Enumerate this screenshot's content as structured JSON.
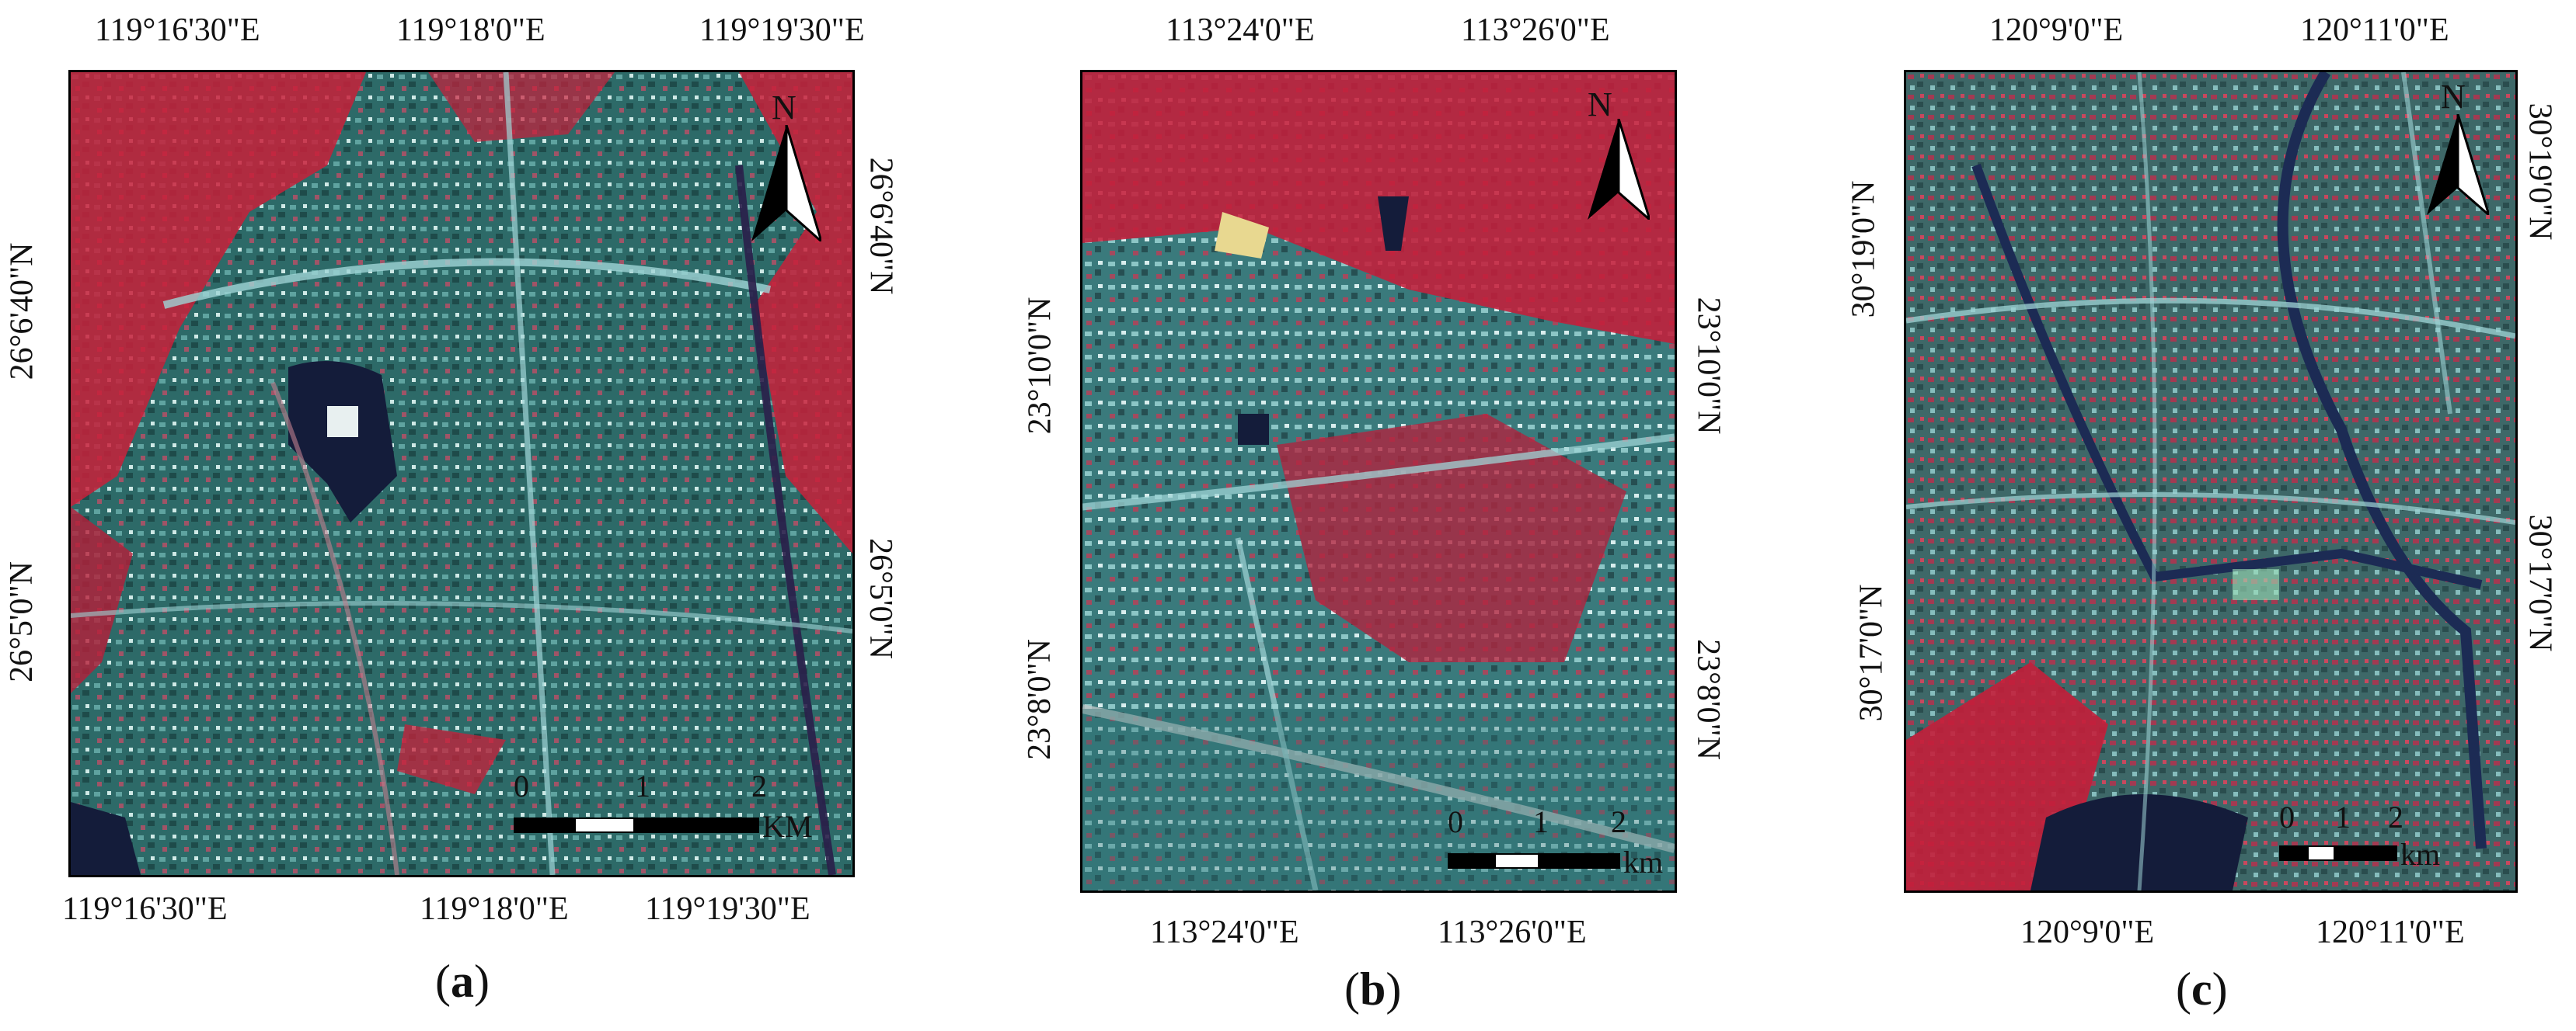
{
  "panels": [
    {
      "caption_letter": "a",
      "top_labels": [
        "119°16'30\"E",
        "119°18'0\"E",
        "119°19'30\"E"
      ],
      "bottom_labels": [
        "119°16'30\"E",
        "119°18'0\"E",
        "119°19'30\"E"
      ],
      "left_labels": [
        "26°6'40\"N",
        "26°5'0\"N"
      ],
      "right_labels": [
        "26°6'40\"N",
        "26°5'0\"N"
      ],
      "scale_numbers": [
        "0",
        "1",
        "2"
      ],
      "scale_unit": "KM",
      "north_letter": "N"
    },
    {
      "caption_letter": "b",
      "top_labels": [
        "113°24'0\"E",
        "113°26'0\"E"
      ],
      "bottom_labels": [
        "113°24'0\"E",
        "113°26'0\"E"
      ],
      "left_labels": [
        "23°10'0\"N",
        "23°8'0\"N"
      ],
      "right_labels": [
        "23°10'0\"N",
        "23°8'0\"N"
      ],
      "scale_numbers": [
        "0",
        "1",
        "2"
      ],
      "scale_unit": "km",
      "north_letter": "N"
    },
    {
      "caption_letter": "c",
      "top_labels": [
        "120°9'0\"E",
        "120°11'0\"E"
      ],
      "bottom_labels": [
        "120°9'0\"E",
        "120°11'0\"E"
      ],
      "left_labels": [
        "30°19'0\"N",
        "30°17'0\"N"
      ],
      "right_labels": [
        "30°19'0\"N",
        "30°17'0\"N"
      ],
      "scale_numbers": [
        "0",
        "1",
        "2"
      ],
      "scale_unit": "km",
      "north_letter": "N"
    }
  ],
  "colors": {
    "vegetation": "#c8203a",
    "urban": "#2f6e6a",
    "water": "#141c3a",
    "road": "#9fd4d6"
  }
}
